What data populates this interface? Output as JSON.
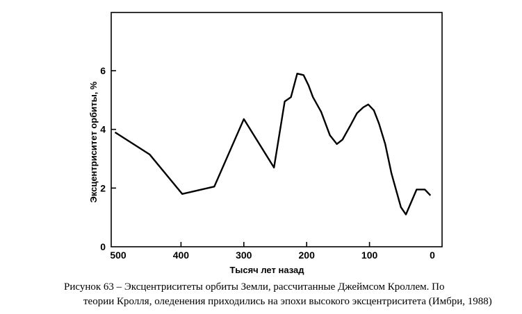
{
  "caption": {
    "line1": "Рисунок 63 – Эксцентриситеты орбиты Земли, рассчитанные Джеймсом Кроллем. По",
    "line2": "теории Кролля, оледенения приходились на эпохи высокого эксцентриситета (Имбри, 1988)"
  },
  "chart_data": {
    "type": "line",
    "title": "",
    "xlabel": "Тысяч лет назад",
    "ylabel": "Эксцентриситет орбиты, %",
    "xlim": [
      500,
      0
    ],
    "ylim": [
      0,
      8
    ],
    "x_ticks": [
      500,
      400,
      300,
      200,
      100,
      0
    ],
    "x_tick_labels": [
      "500",
      "400",
      "300",
      "200",
      "100",
      "0"
    ],
    "y_ticks": [
      0,
      2,
      4,
      6
    ],
    "y_tick_labels": [
      "0",
      "2",
      "4",
      "6"
    ],
    "grid": false,
    "series": [
      {
        "x": [
          505,
          450,
          398,
          347,
          300,
          252,
          235,
          225,
          215,
          205,
          197,
          190,
          177,
          163,
          152,
          143,
          130,
          120,
          110,
          102,
          93,
          85,
          75,
          65,
          50,
          42,
          25,
          12,
          3
        ],
        "y": [
          3.9,
          3.15,
          1.8,
          2.05,
          4.35,
          2.7,
          4.95,
          5.1,
          5.9,
          5.85,
          5.5,
          5.1,
          4.6,
          3.8,
          3.5,
          3.65,
          4.15,
          4.55,
          4.75,
          4.85,
          4.65,
          4.2,
          3.5,
          2.5,
          1.35,
          1.1,
          1.95,
          1.95,
          1.75
        ]
      }
    ]
  }
}
